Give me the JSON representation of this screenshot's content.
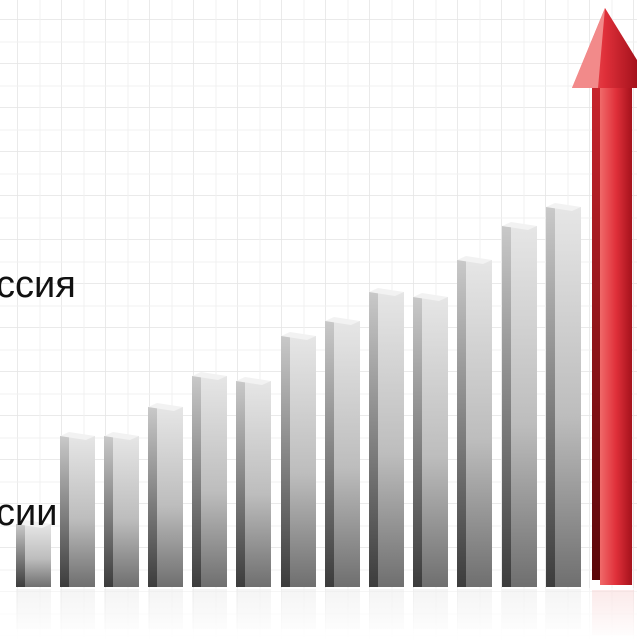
{
  "texts": [
    "ссия",
    "сии"
  ]
}
